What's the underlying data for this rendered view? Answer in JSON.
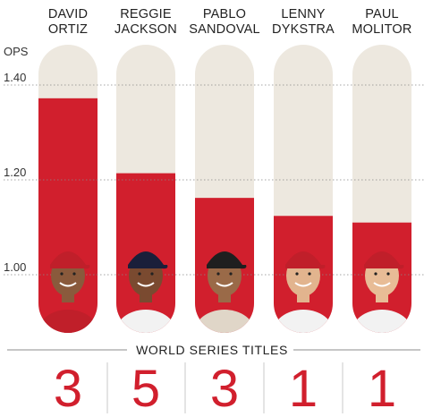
{
  "colors": {
    "accent": "#d11f2d",
    "track": "#ede8df",
    "grid": "#888888",
    "text": "#222222"
  },
  "chart_data": {
    "type": "bar",
    "categories": [
      [
        "DAVID",
        "ORTIZ"
      ],
      [
        "REGGIE",
        "JACKSON"
      ],
      [
        "PABLO",
        "SANDOVAL"
      ],
      [
        "LENNY",
        "DYKSTRA"
      ],
      [
        "PAUL",
        "MOLITOR"
      ]
    ],
    "series": [
      {
        "values": [
          1.372,
          1.214,
          1.162,
          1.124,
          1.11
        ]
      }
    ],
    "ylabel": "OPS",
    "yticks": [
      "1.40",
      "1.20",
      "1.00"
    ],
    "ylim": [
      1.0,
      1.4
    ],
    "grid": true,
    "world_series_titles": {
      "title": "WORLD SERIES TITLES",
      "values": [
        "3",
        "5",
        "3",
        "1",
        "1"
      ]
    }
  }
}
